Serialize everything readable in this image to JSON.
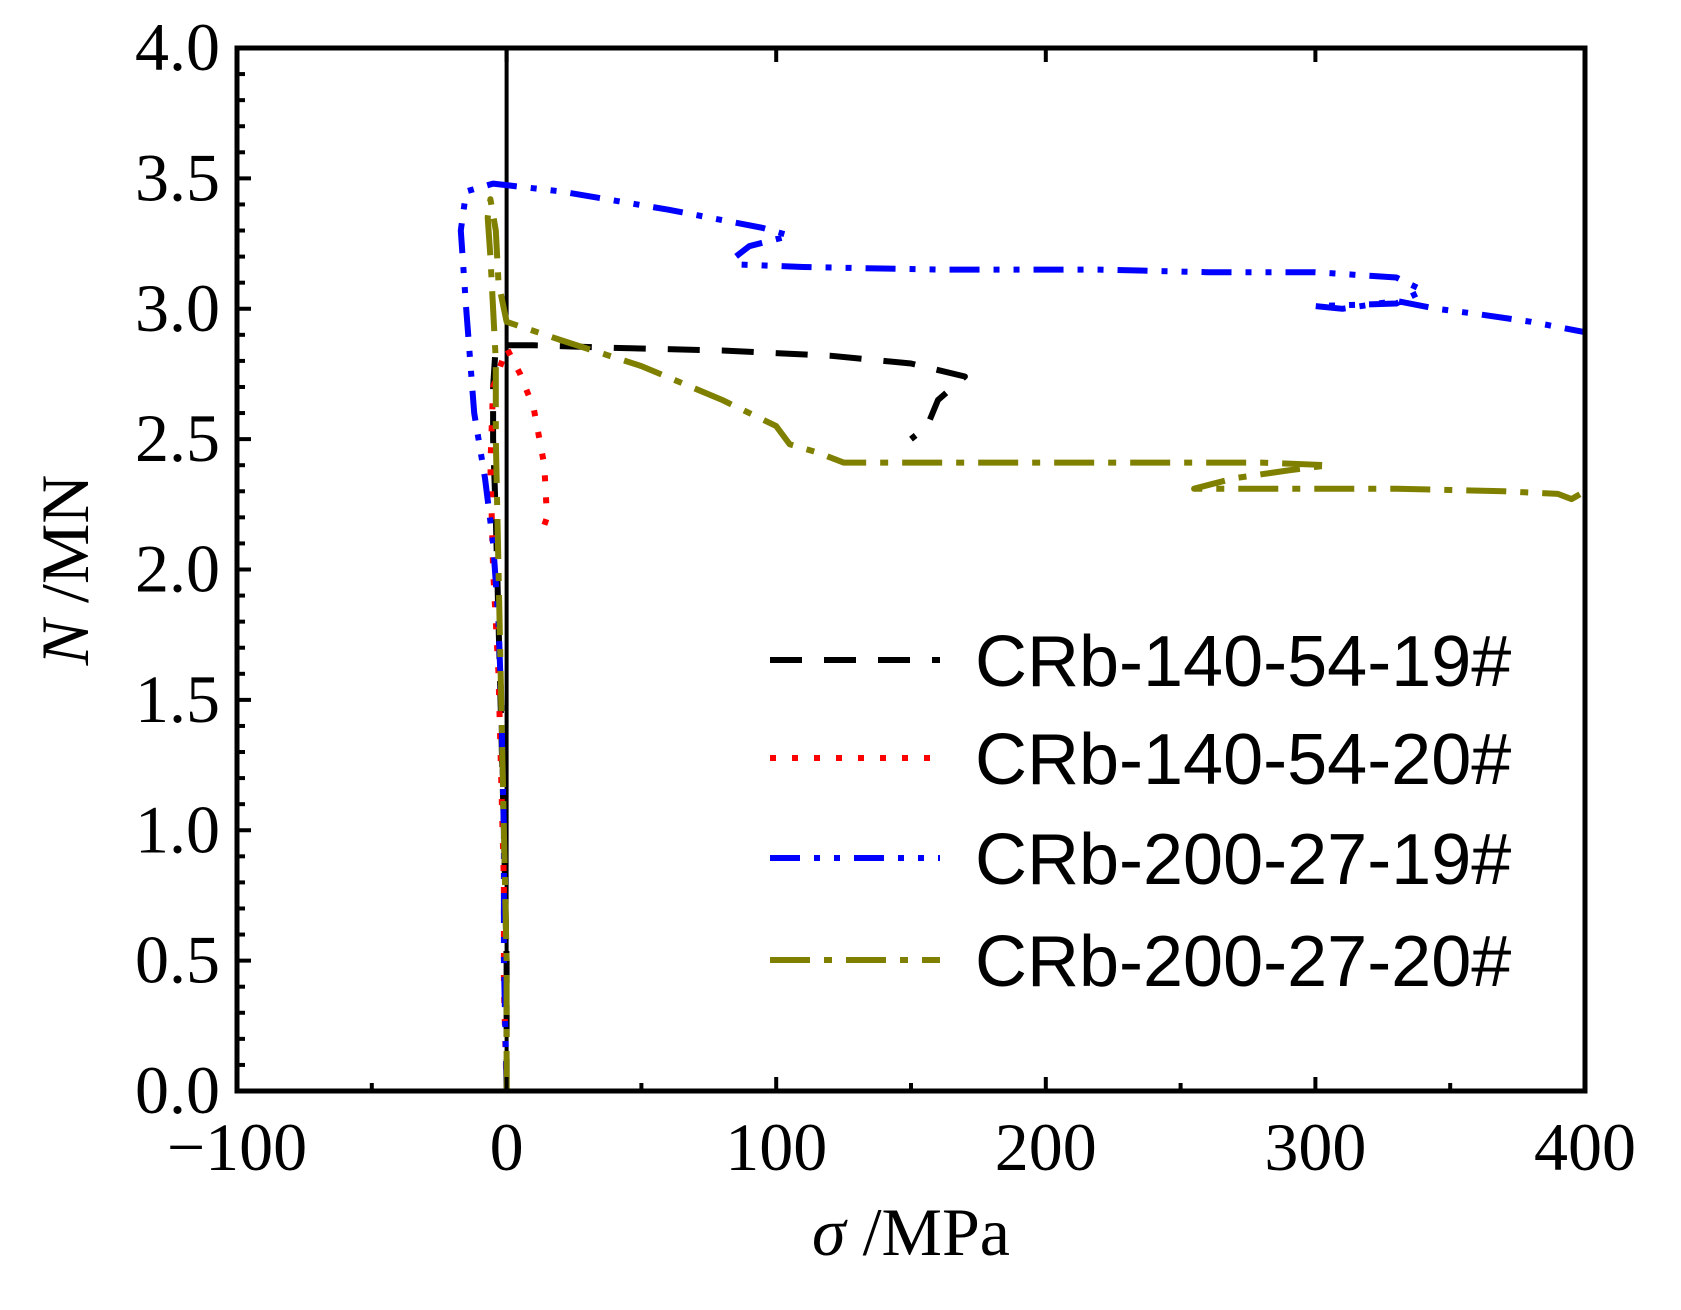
{
  "chart_data": {
    "type": "line",
    "title": "",
    "xlabel": {
      "symbol": "σ",
      "unit": " /MPa"
    },
    "ylabel": {
      "symbol": "N",
      "unit": " /MN"
    },
    "xlim": [
      -100,
      400
    ],
    "ylim": [
      0.0,
      4.0
    ],
    "xticks": [
      -100,
      0,
      100,
      200,
      300,
      400
    ],
    "xtick_labels": [
      "−100",
      "0",
      "100",
      "200",
      "300",
      "400"
    ],
    "yticks": [
      0.0,
      0.5,
      1.0,
      1.5,
      2.0,
      2.5,
      3.0,
      3.5,
      4.0
    ],
    "ytick_labels": [
      "0.0",
      "0.5",
      "1.0",
      "1.5",
      "2.0",
      "2.5",
      "3.0",
      "3.5",
      "4.0"
    ],
    "grid": false,
    "legend_position": "bottom-right",
    "reference_line": {
      "orientation": "vertical",
      "x": 0,
      "color": "#000000"
    },
    "series": [
      {
        "name": "CRb-140-54-19#",
        "color": "#000000",
        "style": "dashed",
        "points": [
          [
            0,
            0
          ],
          [
            0,
            0.5
          ],
          [
            -1,
            1.0
          ],
          [
            -2,
            1.4
          ],
          [
            -3,
            1.8
          ],
          [
            -4,
            2.2
          ],
          [
            -5,
            2.5
          ],
          [
            -5,
            2.7
          ],
          [
            -4,
            2.86
          ],
          [
            10,
            2.86
          ],
          [
            40,
            2.85
          ],
          [
            80,
            2.84
          ],
          [
            120,
            2.82
          ],
          [
            150,
            2.79
          ],
          [
            170,
            2.74
          ],
          [
            160,
            2.65
          ],
          [
            156,
            2.55
          ],
          [
            150,
            2.5
          ]
        ]
      },
      {
        "name": "CRb-140-54-20#",
        "color": "#ff0000",
        "style": "dotted",
        "points": [
          [
            0,
            0
          ],
          [
            -1,
            0.4
          ],
          [
            -1,
            0.8
          ],
          [
            -2,
            1.2
          ],
          [
            -3,
            1.6
          ],
          [
            -5,
            2.0
          ],
          [
            -6,
            2.4
          ],
          [
            -5,
            2.7
          ],
          [
            0,
            2.85
          ],
          [
            5,
            2.75
          ],
          [
            10,
            2.62
          ],
          [
            14,
            2.4
          ],
          [
            15,
            2.2
          ],
          [
            14,
            2.17
          ]
        ]
      },
      {
        "name": "CRb-200-27-19#",
        "color": "#0000ff",
        "style": "dash-dot-dot",
        "points": [
          [
            0,
            0
          ],
          [
            -1,
            0.5
          ],
          [
            -1,
            1.0
          ],
          [
            -2,
            1.5
          ],
          [
            -3,
            1.8
          ],
          [
            -5,
            2.1
          ],
          [
            -8,
            2.35
          ],
          [
            -12,
            2.6
          ],
          [
            -15,
            3.0
          ],
          [
            -17,
            3.3
          ],
          [
            -15,
            3.45
          ],
          [
            -5,
            3.48
          ],
          [
            20,
            3.45
          ],
          [
            60,
            3.38
          ],
          [
            95,
            3.31
          ],
          [
            105,
            3.28
          ],
          [
            90,
            3.24
          ],
          [
            85,
            3.2
          ],
          [
            85,
            3.17
          ],
          [
            110,
            3.16
          ],
          [
            160,
            3.15
          ],
          [
            220,
            3.15
          ],
          [
            260,
            3.14
          ],
          [
            300,
            3.14
          ],
          [
            330,
            3.12
          ],
          [
            340,
            3.07
          ],
          [
            330,
            3.02
          ],
          [
            300,
            3.01
          ],
          [
            310,
            3.0
          ],
          [
            330,
            3.03
          ],
          [
            345,
            3.0
          ],
          [
            360,
            2.98
          ],
          [
            380,
            2.95
          ],
          [
            400,
            2.91
          ]
        ]
      },
      {
        "name": "CRb-200-27-20#",
        "color": "#808000",
        "style": "dash-dot",
        "points": [
          [
            0,
            0
          ],
          [
            0,
            0.5
          ],
          [
            -1,
            1.0
          ],
          [
            -2,
            1.5
          ],
          [
            -3,
            2.0
          ],
          [
            -4,
            2.5
          ],
          [
            -4,
            2.8
          ],
          [
            -5,
            3.0
          ],
          [
            -6,
            3.2
          ],
          [
            -7,
            3.35
          ],
          [
            -6,
            3.42
          ],
          [
            -4,
            3.3
          ],
          [
            -3,
            3.1
          ],
          [
            0,
            2.95
          ],
          [
            20,
            2.88
          ],
          [
            50,
            2.78
          ],
          [
            80,
            2.65
          ],
          [
            100,
            2.55
          ],
          [
            105,
            2.48
          ],
          [
            115,
            2.45
          ],
          [
            125,
            2.41
          ],
          [
            160,
            2.41
          ],
          [
            220,
            2.41
          ],
          [
            280,
            2.41
          ],
          [
            305,
            2.4
          ],
          [
            290,
            2.38
          ],
          [
            270,
            2.35
          ],
          [
            255,
            2.31
          ],
          [
            280,
            2.31
          ],
          [
            330,
            2.31
          ],
          [
            370,
            2.3
          ],
          [
            390,
            2.29
          ],
          [
            395,
            2.27
          ],
          [
            400,
            2.3
          ]
        ]
      }
    ]
  }
}
